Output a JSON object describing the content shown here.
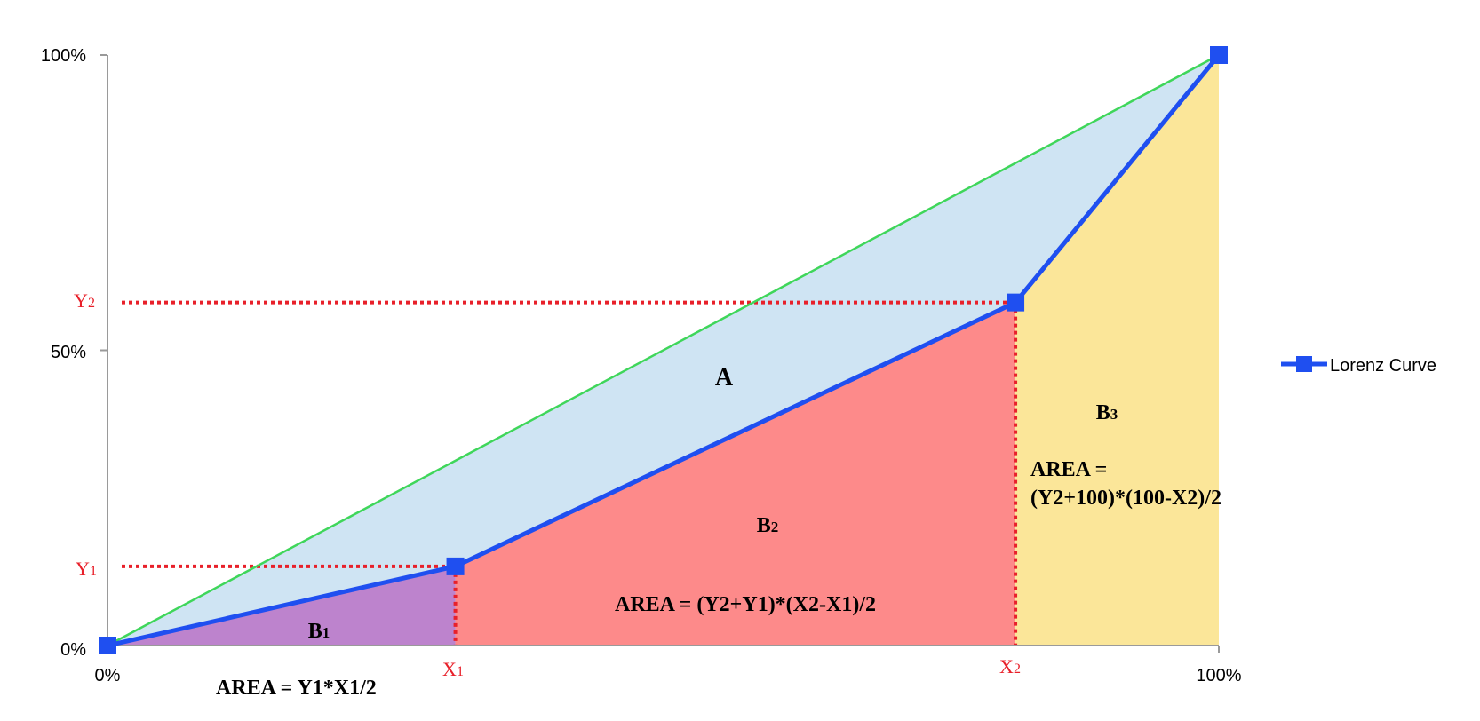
{
  "chart_data": {
    "type": "area",
    "title": "",
    "xlabel": "",
    "ylabel": "",
    "xlim": [
      0,
      100
    ],
    "ylim": [
      0,
      100
    ],
    "grid": false,
    "legend_position": "right",
    "x_ticks": [
      "0%",
      "100%"
    ],
    "y_ticks": [
      "0%",
      "50%",
      "100%"
    ],
    "series": [
      {
        "name": "Lorenz Curve",
        "color": "#1f4ff0",
        "points": [
          {
            "x": 0,
            "y": 0
          },
          {
            "x": 31.3,
            "y": 13.4
          },
          {
            "x": 81.7,
            "y": 58.1
          },
          {
            "x": 100,
            "y": 100
          }
        ]
      }
    ],
    "equality_line": {
      "color": "#3fd65a",
      "from": [
        0,
        0
      ],
      "to": [
        100,
        100
      ]
    },
    "regions": {
      "A": {
        "fill": "#cfe4f3"
      },
      "B1": {
        "fill": "#bd83cd"
      },
      "B2": {
        "fill": "#fd8a8a"
      },
      "B3": {
        "fill": "#fbe699"
      }
    },
    "markers": {
      "x1_label": "X1",
      "x2_label": "X2",
      "y1_label": "Y1",
      "y2_label": "Y2",
      "color": "#e8202a"
    },
    "annotations": {
      "A": "A",
      "B1": "B1",
      "B2": "B2",
      "B3": "B3",
      "area_b1": "AREA = Y1*X1/2",
      "area_b2": "AREA = (Y2+Y1)*(X2-X1)/2",
      "area_b3_line1": "AREA =",
      "area_b3_line2": "(Y2+100)*(100-X2)/2"
    }
  }
}
